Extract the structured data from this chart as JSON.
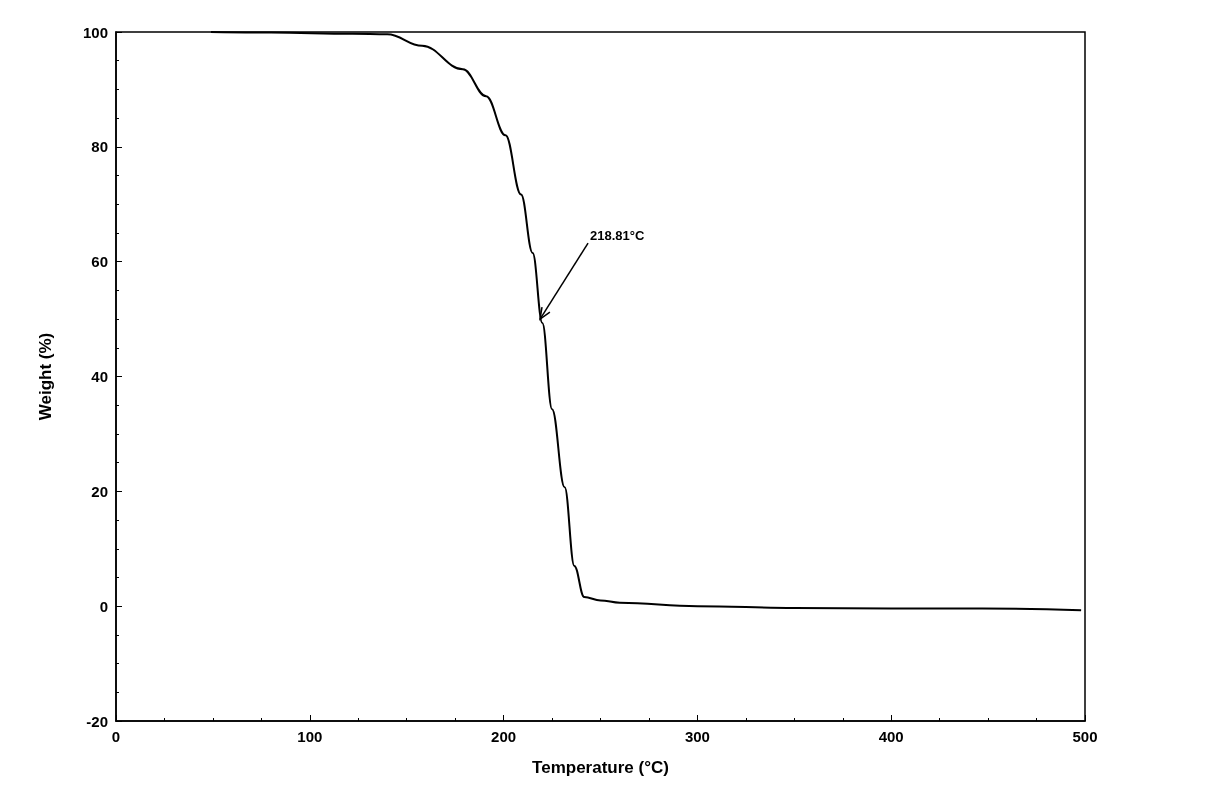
{
  "chart_data": {
    "type": "line",
    "xlabel": "Temperature (°C)",
    "ylabel": "Weight (%)",
    "series": [
      {
        "color": "#000000",
        "x": [
          49,
          80,
          122,
          140,
          158,
          179,
          191,
          201,
          209,
          215,
          220,
          225,
          231.5,
          236.5,
          241.6,
          250,
          260,
          300,
          350,
          400,
          447,
          498
        ],
        "values": [
          100,
          99.9,
          99.7,
          99.6,
          97.6,
          93.5,
          88.8,
          82,
          71.7,
          61.5,
          49.3,
          34.3,
          20.7,
          7,
          1.6,
          1,
          0.6,
          0,
          -0.3,
          -0.4,
          -0.4,
          -0.7
        ]
      }
    ],
    "xlim": [
      0,
      500
    ],
    "xticks": [
      0,
      100,
      200,
      300,
      400,
      500
    ],
    "ylim": [
      -20,
      100
    ],
    "yticks": [
      -20,
      0,
      20,
      40,
      60,
      80,
      100
    ],
    "annotations": [
      {
        "text": "218.81°C",
        "x": 218.81,
        "y": 50
      }
    ],
    "grid": false,
    "marker": "none",
    "line_style": "solid"
  }
}
